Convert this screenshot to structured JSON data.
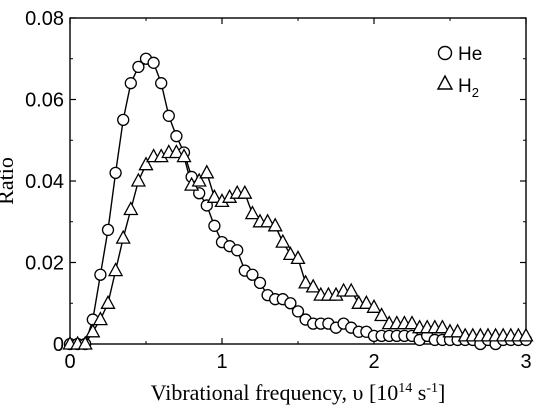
{
  "chart_data": {
    "type": "line",
    "title": "",
    "xlabel": "Vibrational frequency, υ [10¹⁴ s⁻¹]",
    "ylabel": "Ratio",
    "xlim": [
      0,
      3
    ],
    "ylim": [
      0,
      0.08
    ],
    "x_ticks": [
      "0",
      "1",
      "2",
      "3"
    ],
    "y_ticks": [
      "0",
      "0.02",
      "0.04",
      "0.06",
      "0.08"
    ],
    "grid": false,
    "legend_position": "top-right",
    "series": [
      {
        "name": "He",
        "marker": "circle",
        "points": [
          [
            0.0,
            0.0
          ],
          [
            0.05,
            0.0
          ],
          [
            0.1,
            0.0
          ],
          [
            0.15,
            0.006
          ],
          [
            0.2,
            0.017
          ],
          [
            0.25,
            0.028
          ],
          [
            0.3,
            0.042
          ],
          [
            0.35,
            0.055
          ],
          [
            0.4,
            0.064
          ],
          [
            0.45,
            0.068
          ],
          [
            0.5,
            0.07
          ],
          [
            0.55,
            0.069
          ],
          [
            0.6,
            0.064
          ],
          [
            0.65,
            0.056
          ],
          [
            0.7,
            0.051
          ],
          [
            0.75,
            0.047
          ],
          [
            0.8,
            0.041
          ],
          [
            0.85,
            0.037
          ],
          [
            0.9,
            0.034
          ],
          [
            0.95,
            0.029
          ],
          [
            1.0,
            0.025
          ],
          [
            1.05,
            0.024
          ],
          [
            1.1,
            0.023
          ],
          [
            1.15,
            0.018
          ],
          [
            1.2,
            0.017
          ],
          [
            1.25,
            0.015
          ],
          [
            1.3,
            0.012
          ],
          [
            1.35,
            0.011
          ],
          [
            1.4,
            0.011
          ],
          [
            1.45,
            0.01
          ],
          [
            1.5,
            0.008
          ],
          [
            1.55,
            0.006
          ],
          [
            1.6,
            0.005
          ],
          [
            1.65,
            0.005
          ],
          [
            1.7,
            0.005
          ],
          [
            1.75,
            0.004
          ],
          [
            1.8,
            0.005
          ],
          [
            1.85,
            0.004
          ],
          [
            1.9,
            0.003
          ],
          [
            1.95,
            0.003
          ],
          [
            2.0,
            0.002
          ],
          [
            2.05,
            0.002
          ],
          [
            2.1,
            0.002
          ],
          [
            2.15,
            0.002
          ],
          [
            2.2,
            0.002
          ],
          [
            2.25,
            0.002
          ],
          [
            2.3,
            0.001
          ],
          [
            2.35,
            0.002
          ],
          [
            2.4,
            0.001
          ],
          [
            2.45,
            0.001
          ],
          [
            2.5,
            0.001
          ],
          [
            2.55,
            0.001
          ],
          [
            2.6,
            0.001
          ],
          [
            2.65,
            0.001
          ],
          [
            2.7,
            0.0
          ],
          [
            2.75,
            0.001
          ],
          [
            2.8,
            0.0
          ],
          [
            2.85,
            0.001
          ],
          [
            2.9,
            0.001
          ],
          [
            2.95,
            0.001
          ],
          [
            3.0,
            0.001
          ]
        ]
      },
      {
        "name": "H2",
        "marker": "triangle",
        "points": [
          [
            0.0,
            0.0
          ],
          [
            0.05,
            0.0
          ],
          [
            0.1,
            0.0
          ],
          [
            0.15,
            0.003
          ],
          [
            0.2,
            0.006
          ],
          [
            0.25,
            0.01
          ],
          [
            0.3,
            0.018
          ],
          [
            0.35,
            0.026
          ],
          [
            0.4,
            0.033
          ],
          [
            0.45,
            0.04
          ],
          [
            0.5,
            0.044
          ],
          [
            0.55,
            0.046
          ],
          [
            0.6,
            0.046
          ],
          [
            0.65,
            0.047
          ],
          [
            0.7,
            0.047
          ],
          [
            0.75,
            0.046
          ],
          [
            0.8,
            0.039
          ],
          [
            0.85,
            0.04
          ],
          [
            0.9,
            0.042
          ],
          [
            0.95,
            0.036
          ],
          [
            1.0,
            0.035
          ],
          [
            1.05,
            0.036
          ],
          [
            1.1,
            0.037
          ],
          [
            1.15,
            0.037
          ],
          [
            1.2,
            0.032
          ],
          [
            1.25,
            0.03
          ],
          [
            1.3,
            0.03
          ],
          [
            1.35,
            0.029
          ],
          [
            1.4,
            0.025
          ],
          [
            1.45,
            0.022
          ],
          [
            1.5,
            0.021
          ],
          [
            1.55,
            0.015
          ],
          [
            1.6,
            0.014
          ],
          [
            1.65,
            0.012
          ],
          [
            1.7,
            0.012
          ],
          [
            1.75,
            0.012
          ],
          [
            1.8,
            0.013
          ],
          [
            1.85,
            0.013
          ],
          [
            1.9,
            0.01
          ],
          [
            1.95,
            0.01
          ],
          [
            2.0,
            0.009
          ],
          [
            2.05,
            0.007
          ],
          [
            2.1,
            0.005
          ],
          [
            2.15,
            0.005
          ],
          [
            2.2,
            0.005
          ],
          [
            2.25,
            0.005
          ],
          [
            2.3,
            0.004
          ],
          [
            2.35,
            0.004
          ],
          [
            2.4,
            0.004
          ],
          [
            2.45,
            0.004
          ],
          [
            2.5,
            0.003
          ],
          [
            2.55,
            0.003
          ],
          [
            2.6,
            0.002
          ],
          [
            2.65,
            0.002
          ],
          [
            2.7,
            0.002
          ],
          [
            2.75,
            0.002
          ],
          [
            2.8,
            0.002
          ],
          [
            2.85,
            0.002
          ],
          [
            2.9,
            0.002
          ],
          [
            2.95,
            0.002
          ],
          [
            3.0,
            0.002
          ]
        ]
      }
    ],
    "legend": [
      {
        "label": "He",
        "marker": "circle"
      },
      {
        "label_main": "H",
        "label_sub": "2",
        "marker": "triangle"
      }
    ],
    "colors": {
      "line": "#000000",
      "marker_fill": "#ffffff",
      "background": "#ffffff"
    }
  }
}
